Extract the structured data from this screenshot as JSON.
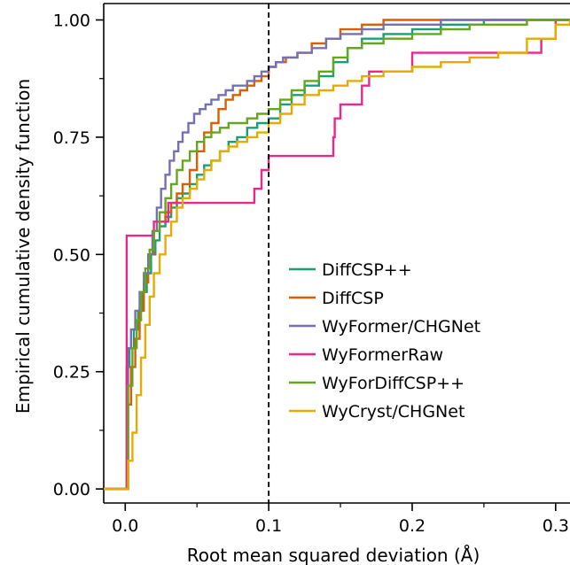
{
  "chart_data": {
    "type": "line",
    "title": "",
    "xlabel": "Root mean squared deviation (Å)",
    "ylabel": "Empirical cumulative density function",
    "xlim": [
      -0.015,
      0.31
    ],
    "ylim": [
      -0.03,
      1.035
    ],
    "x_ticks": [
      0.0,
      0.1,
      0.2,
      0.3
    ],
    "x_tick_labels": [
      "0.0",
      "0.1",
      "0.2",
      "0.3"
    ],
    "y_ticks": [
      0.0,
      0.25,
      0.5,
      0.75,
      1.0
    ],
    "y_tick_labels": [
      "0.00",
      "0.25",
      "0.50",
      "0.75",
      "1.00"
    ],
    "threshold_x": 0.1,
    "grid": false,
    "legend_position": "lower-right",
    "series": [
      {
        "name": "DiffCSP++",
        "color": "#1b9e77",
        "x": [
          -0.015,
          0.0,
          0.001,
          0.003,
          0.006,
          0.009,
          0.012,
          0.015,
          0.018,
          0.021,
          0.024,
          0.028,
          0.032,
          0.036,
          0.04,
          0.045,
          0.05,
          0.055,
          0.06,
          0.066,
          0.072,
          0.078,
          0.085,
          0.092,
          0.1,
          0.108,
          0.116,
          0.125,
          0.135,
          0.145,
          0.155,
          0.165,
          0.18,
          0.2,
          0.22,
          0.25,
          0.27,
          0.29,
          0.31
        ],
        "y": [
          0.0,
          0.0,
          0.26,
          0.3,
          0.34,
          0.38,
          0.42,
          0.46,
          0.5,
          0.53,
          0.56,
          0.58,
          0.6,
          0.62,
          0.63,
          0.65,
          0.67,
          0.69,
          0.7,
          0.72,
          0.74,
          0.75,
          0.77,
          0.78,
          0.79,
          0.82,
          0.84,
          0.86,
          0.88,
          0.91,
          0.94,
          0.96,
          0.97,
          0.98,
          0.99,
          1.0,
          1.0,
          1.0,
          1.0
        ]
      },
      {
        "name": "DiffCSP",
        "color": "#d95f02",
        "x": [
          -0.015,
          0.0,
          0.002,
          0.004,
          0.007,
          0.01,
          0.013,
          0.016,
          0.02,
          0.024,
          0.028,
          0.032,
          0.036,
          0.04,
          0.045,
          0.05,
          0.055,
          0.06,
          0.065,
          0.07,
          0.075,
          0.08,
          0.085,
          0.09,
          0.095,
          0.1,
          0.105,
          0.112,
          0.12,
          0.13,
          0.14,
          0.15,
          0.165,
          0.18,
          0.2,
          0.22,
          0.24,
          0.27,
          0.31
        ],
        "y": [
          0.0,
          0.0,
          0.18,
          0.26,
          0.32,
          0.38,
          0.44,
          0.5,
          0.55,
          0.57,
          0.59,
          0.61,
          0.63,
          0.65,
          0.68,
          0.72,
          0.76,
          0.78,
          0.81,
          0.83,
          0.84,
          0.85,
          0.86,
          0.87,
          0.88,
          0.9,
          0.91,
          0.92,
          0.93,
          0.95,
          0.96,
          0.98,
          0.99,
          1.0,
          1.0,
          1.0,
          1.0,
          1.0,
          1.0
        ]
      },
      {
        "name": "WyFormer/CHGNet",
        "color": "#7570b3",
        "x": [
          -0.015,
          0.0,
          0.002,
          0.004,
          0.007,
          0.01,
          0.013,
          0.016,
          0.019,
          0.022,
          0.025,
          0.028,
          0.031,
          0.034,
          0.037,
          0.04,
          0.044,
          0.048,
          0.052,
          0.056,
          0.06,
          0.065,
          0.07,
          0.075,
          0.08,
          0.085,
          0.09,
          0.095,
          0.1,
          0.105,
          0.11,
          0.12,
          0.13,
          0.14,
          0.15,
          0.165,
          0.18,
          0.2,
          0.22,
          0.25,
          0.31
        ],
        "y": [
          0.0,
          0.0,
          0.3,
          0.34,
          0.38,
          0.42,
          0.46,
          0.5,
          0.55,
          0.6,
          0.64,
          0.67,
          0.7,
          0.72,
          0.74,
          0.76,
          0.78,
          0.8,
          0.81,
          0.82,
          0.83,
          0.84,
          0.85,
          0.86,
          0.86,
          0.87,
          0.88,
          0.89,
          0.9,
          0.91,
          0.92,
          0.93,
          0.94,
          0.96,
          0.97,
          0.98,
          0.99,
          0.99,
          1.0,
          1.0,
          1.0
        ]
      },
      {
        "name": "WyFormerRaw",
        "color": "#e7298a",
        "x": [
          -0.015,
          0.0,
          0.001,
          0.02,
          0.03,
          0.05,
          0.06,
          0.075,
          0.08,
          0.09,
          0.095,
          0.1,
          0.125,
          0.14,
          0.145,
          0.146,
          0.15,
          0.165,
          0.17,
          0.2,
          0.22,
          0.24,
          0.26,
          0.27,
          0.29,
          0.3,
          0.31
        ],
        "y": [
          0.0,
          0.0,
          0.54,
          0.57,
          0.61,
          0.61,
          0.61,
          0.61,
          0.61,
          0.64,
          0.68,
          0.71,
          0.71,
          0.71,
          0.75,
          0.79,
          0.82,
          0.86,
          0.89,
          0.93,
          0.93,
          0.93,
          0.93,
          0.93,
          0.96,
          1.0,
          1.0
        ]
      },
      {
        "name": "WyForDiffCSP++",
        "color": "#66a61e",
        "x": [
          -0.015,
          0.0,
          0.002,
          0.005,
          0.008,
          0.011,
          0.014,
          0.017,
          0.02,
          0.024,
          0.028,
          0.032,
          0.036,
          0.04,
          0.045,
          0.05,
          0.055,
          0.06,
          0.066,
          0.072,
          0.078,
          0.085,
          0.092,
          0.1,
          0.108,
          0.116,
          0.125,
          0.135,
          0.145,
          0.155,
          0.165,
          0.18,
          0.2,
          0.22,
          0.24,
          0.26,
          0.28,
          0.31
        ],
        "y": [
          0.0,
          0.0,
          0.22,
          0.3,
          0.36,
          0.42,
          0.47,
          0.51,
          0.55,
          0.59,
          0.62,
          0.65,
          0.68,
          0.7,
          0.72,
          0.74,
          0.75,
          0.76,
          0.77,
          0.78,
          0.78,
          0.79,
          0.8,
          0.81,
          0.83,
          0.85,
          0.87,
          0.89,
          0.92,
          0.94,
          0.95,
          0.96,
          0.97,
          0.98,
          0.99,
          0.99,
          1.0,
          1.0
        ]
      },
      {
        "name": "WyCryst/CHGNet",
        "color": "#e6ab02",
        "x": [
          -0.015,
          0.0,
          0.002,
          0.005,
          0.008,
          0.011,
          0.014,
          0.017,
          0.02,
          0.024,
          0.028,
          0.032,
          0.036,
          0.04,
          0.045,
          0.05,
          0.055,
          0.06,
          0.066,
          0.072,
          0.078,
          0.085,
          0.092,
          0.1,
          0.108,
          0.116,
          0.125,
          0.135,
          0.145,
          0.155,
          0.165,
          0.18,
          0.2,
          0.22,
          0.24,
          0.26,
          0.28,
          0.3,
          0.31
        ],
        "y": [
          0.0,
          0.0,
          0.06,
          0.12,
          0.2,
          0.28,
          0.35,
          0.41,
          0.46,
          0.5,
          0.54,
          0.57,
          0.6,
          0.62,
          0.64,
          0.66,
          0.68,
          0.7,
          0.72,
          0.73,
          0.74,
          0.75,
          0.76,
          0.78,
          0.8,
          0.82,
          0.84,
          0.85,
          0.86,
          0.87,
          0.88,
          0.89,
          0.9,
          0.91,
          0.92,
          0.93,
          0.96,
          0.99,
          1.0
        ]
      }
    ]
  }
}
